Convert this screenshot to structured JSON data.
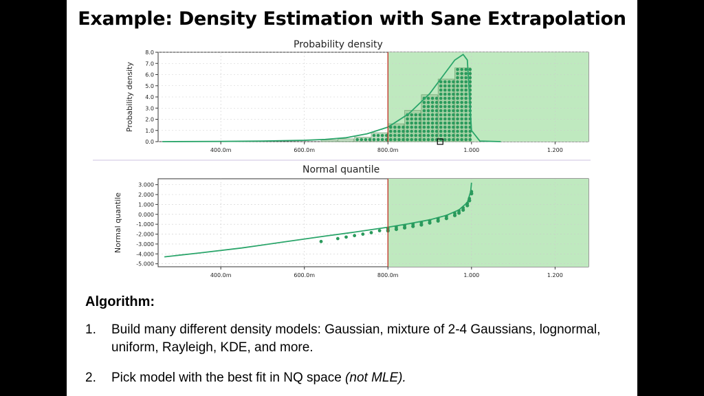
{
  "slide": {
    "title": "Example: Density Estimation with Sane Extrapolation"
  },
  "colors": {
    "curve": "#2aa56a",
    "points": "#2a9a5c",
    "region_fill": "#bfe9bf",
    "threshold_line": "#c0392b",
    "plot_background": "#ffffff",
    "grid": "#cccccc"
  },
  "chart_data": [
    {
      "type": "bar",
      "title": "Probability density",
      "xlabel": "",
      "ylabel": "Probability density",
      "xlim": [
        0.25,
        1.28
      ],
      "ylim": [
        0,
        8
      ],
      "x_ticks": [
        0.4,
        0.6,
        0.8,
        1.0,
        1.2
      ],
      "x_tick_labels": [
        "400.0m",
        "600.0m",
        "800.0m",
        "1.000",
        "1.200"
      ],
      "y_ticks": [
        0,
        1,
        2,
        3,
        4,
        5,
        6,
        7,
        8
      ],
      "y_tick_labels": [
        "0.0",
        "1.0",
        "2.0",
        "3.0",
        "4.0",
        "5.0",
        "6.0",
        "7.0",
        "8.0"
      ],
      "grid": true,
      "highlight_region": {
        "x_start": 0.8,
        "x_end": 1.28
      },
      "threshold_x": 0.8,
      "histogram": {
        "bin_edges": [
          0.64,
          0.68,
          0.72,
          0.76,
          0.8,
          0.84,
          0.88,
          0.92,
          0.96,
          1.0
        ],
        "values": [
          0.15,
          0.25,
          0.4,
          0.8,
          1.6,
          2.8,
          4.2,
          5.6,
          6.6
        ]
      },
      "density_curve": {
        "x": [
          0.26,
          0.4,
          0.5,
          0.6,
          0.65,
          0.7,
          0.75,
          0.8,
          0.85,
          0.9,
          0.93,
          0.96,
          0.98,
          0.99,
          1.0,
          1.02,
          1.07
        ],
        "y": [
          0.0,
          0.02,
          0.05,
          0.12,
          0.2,
          0.35,
          0.7,
          1.3,
          2.5,
          4.3,
          5.8,
          7.3,
          7.8,
          7.3,
          1.0,
          0.05,
          0.0
        ]
      },
      "marker_x": 0.925
    },
    {
      "type": "scatter",
      "title": "Normal quantile",
      "xlabel": "",
      "ylabel": "Normal quantile",
      "xlim": [
        0.25,
        1.28
      ],
      "ylim": [
        -5.3,
        3.6
      ],
      "x_ticks": [
        0.4,
        0.6,
        0.8,
        1.0,
        1.2
      ],
      "x_tick_labels": [
        "400.0m",
        "600.0m",
        "800.0m",
        "1.000",
        "1.200"
      ],
      "y_ticks": [
        3,
        2,
        1,
        0,
        -1,
        -2,
        -3,
        -4,
        -5
      ],
      "y_tick_labels": [
        "3.000",
        "2.000",
        "1.000",
        "0.000",
        "-1.000",
        "-2.000",
        "-3.000",
        "-4.000",
        "-5.000"
      ],
      "grid": true,
      "highlight_region": {
        "x_start": 0.8,
        "x_end": 1.28
      },
      "threshold_x": 0.8,
      "fit_curve": {
        "x": [
          0.265,
          0.35,
          0.45,
          0.55,
          0.65,
          0.72,
          0.8,
          0.85,
          0.9,
          0.94,
          0.97,
          0.99,
          0.998,
          1.0
        ],
        "y": [
          -4.3,
          -3.9,
          -3.4,
          -2.8,
          -2.2,
          -1.8,
          -1.3,
          -0.95,
          -0.55,
          -0.1,
          0.45,
          1.2,
          2.3,
          3.2
        ]
      },
      "points": {
        "x": [
          0.64,
          0.68,
          0.7,
          0.72,
          0.74,
          0.76,
          0.78,
          0.8,
          0.82,
          0.84,
          0.86,
          0.88,
          0.9,
          0.92,
          0.94,
          0.96,
          0.97,
          0.98,
          0.99,
          0.995,
          1.0
        ],
        "y": [
          -2.75,
          -2.45,
          -2.3,
          -2.15,
          -2.0,
          -1.85,
          -1.65,
          -1.45,
          -1.3,
          -1.15,
          -1.0,
          -0.85,
          -0.65,
          -0.45,
          -0.2,
          0.1,
          0.35,
          0.65,
          1.1,
          1.6,
          2.3
        ]
      }
    }
  ],
  "algorithm": {
    "heading": "Algorithm:",
    "items": [
      {
        "num": "1.",
        "text": "Build many different density models: Gaussian, mixture of 2-4 Gaussians, lognormal, uniform, Rayleigh, KDE, and more."
      },
      {
        "num": "2.",
        "text_main": "Pick model with the best fit in NQ space ",
        "text_italic": "(not MLE)."
      }
    ]
  }
}
